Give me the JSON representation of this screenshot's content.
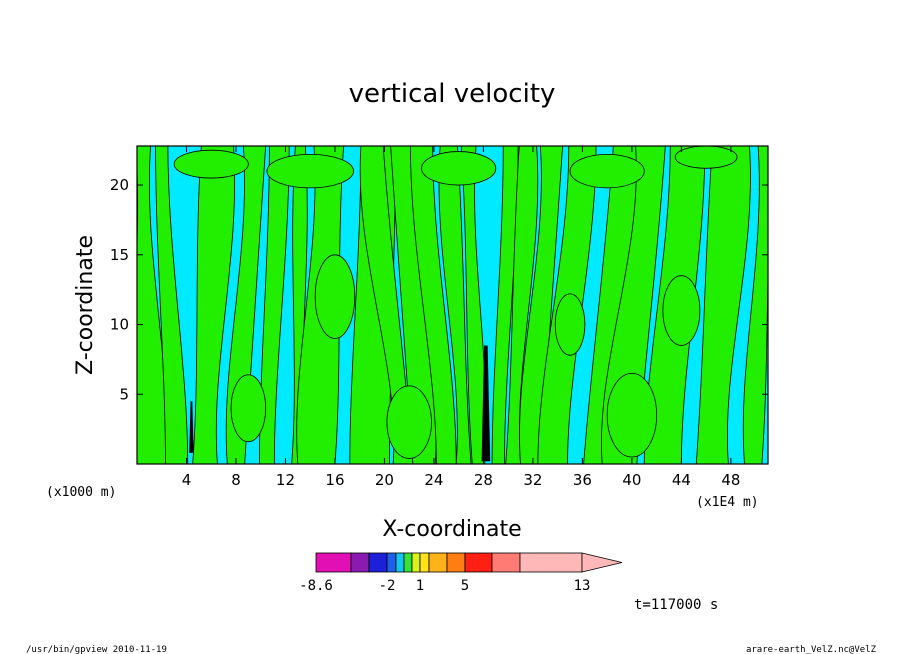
{
  "chart_data": {
    "type": "heatmap",
    "title": "vertical velocity",
    "xlabel": "X-coordinate",
    "ylabel": "Z-coordinate",
    "x_unit_note": "(x1E4 m)",
    "y_unit_note": "(x1000 m)",
    "xlim": [
      0,
      51
    ],
    "ylim": [
      0,
      22.8
    ],
    "xticks": [
      4,
      8,
      12,
      16,
      20,
      24,
      28,
      32,
      36,
      40,
      44,
      48
    ],
    "yticks": [
      5,
      10,
      15,
      20
    ],
    "xtick_labels": [
      "4",
      "8",
      "12",
      "16",
      "20",
      "24",
      "28",
      "32",
      "36",
      "40",
      "44",
      "48"
    ],
    "ytick_labels": [
      "5",
      "10",
      "15",
      "20"
    ],
    "time_label": "t=117000 s",
    "colorbar": {
      "levels": [
        -8.6,
        -6.0,
        -4.0,
        -2.0,
        -1.0,
        0.0,
        0.5,
        1.0,
        2.0,
        3.0,
        5.0,
        7.0,
        9.0,
        13.0
      ],
      "colors": [
        "#e20fb4",
        "#8a1ab0",
        "#1d20d6",
        "#1a60e8",
        "#11c7f0",
        "#34e23a",
        "#d9f21b",
        "#ffe21a",
        "#ffb31b",
        "#ff7e13",
        "#ff1f13",
        "#ff7b74",
        "#ffb8b8"
      ],
      "tick_labels": [
        "-8.6",
        "-2",
        "1",
        "5",
        "13"
      ],
      "tick_levels": [
        -8.6,
        -2,
        1,
        5,
        13
      ]
    },
    "dominant_fields": [
      {
        "name": "negative",
        "color": "#00eaff"
      },
      {
        "name": "positive",
        "color": "#22ee00"
      }
    ]
  },
  "footer": {
    "left": "/usr/bin/gpview   2010-11-19",
    "right": "arare-earth_VelZ.nc@VelZ"
  }
}
